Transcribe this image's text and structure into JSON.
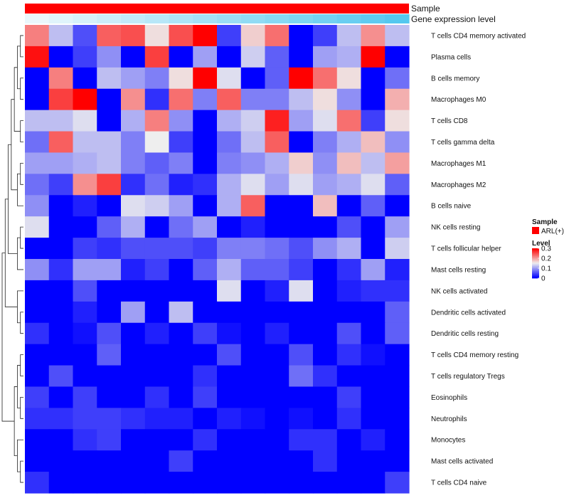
{
  "chart_data": {
    "type": "heatmap",
    "rows": [
      "T cells CD4 memory activated",
      "Plasma cells",
      "B cells memory",
      "Macrophages M0",
      "T cells CD8",
      "T cells gamma delta",
      "Macrophages M1",
      "Macrophages M2",
      "B cells naive",
      "NK cells resting",
      "T cells follicular helper",
      "Mast cells resting",
      "NK cells activated",
      "Dendritic cells activated",
      "Dendritic cells resting",
      "T cells CD4 memory resting",
      "T cells regulatory  Tregs",
      "Eosinophils",
      "Neutrophils",
      "Monocytes",
      "Mast cells activated",
      "T cells CD4 naive"
    ],
    "n_columns": 16,
    "values": [
      [
        0.22,
        0.12,
        0.05,
        0.24,
        0.25,
        0.16,
        0.25,
        0.3,
        0.04,
        0.17,
        0.23,
        0.0,
        0.04,
        0.12,
        0.21,
        0.12
      ],
      [
        0.29,
        0.0,
        0.04,
        0.09,
        0.0,
        0.26,
        0.0,
        0.1,
        0.0,
        0.13,
        0.06,
        0.0,
        0.1,
        0.11,
        0.3,
        0.0
      ],
      [
        0.0,
        0.22,
        0.0,
        0.12,
        0.1,
        0.08,
        0.16,
        0.3,
        0.14,
        0.0,
        0.06,
        0.3,
        0.23,
        0.16,
        0.0,
        0.07
      ],
      [
        0.0,
        0.26,
        0.3,
        0.0,
        0.21,
        0.03,
        0.23,
        0.08,
        0.24,
        0.08,
        0.08,
        0.12,
        0.16,
        0.09,
        0.0,
        0.19
      ],
      [
        0.12,
        0.12,
        0.14,
        0.0,
        0.11,
        0.22,
        0.09,
        0.0,
        0.11,
        0.13,
        0.28,
        0.1,
        0.14,
        0.23,
        0.04,
        0.16
      ],
      [
        0.07,
        0.24,
        0.12,
        0.12,
        0.08,
        0.15,
        0.04,
        0.0,
        0.07,
        0.12,
        0.24,
        0.0,
        0.08,
        0.11,
        0.18,
        0.09
      ],
      [
        0.1,
        0.1,
        0.11,
        0.12,
        0.08,
        0.06,
        0.08,
        0.0,
        0.08,
        0.09,
        0.11,
        0.17,
        0.09,
        0.18,
        0.12,
        0.2
      ],
      [
        0.07,
        0.04,
        0.21,
        0.26,
        0.03,
        0.07,
        0.02,
        0.03,
        0.11,
        0.14,
        0.1,
        0.14,
        0.1,
        0.11,
        0.14,
        0.06
      ],
      [
        0.09,
        0.0,
        0.02,
        0.0,
        0.14,
        0.13,
        0.1,
        0.0,
        0.11,
        0.24,
        0.0,
        0.0,
        0.18,
        0.0,
        0.06,
        0.0
      ],
      [
        0.14,
        0.0,
        0.0,
        0.06,
        0.11,
        0.0,
        0.07,
        0.1,
        0.0,
        0.02,
        0.0,
        0.0,
        0.0,
        0.05,
        0.0,
        0.1
      ],
      [
        0.0,
        0.0,
        0.04,
        0.03,
        0.05,
        0.05,
        0.05,
        0.04,
        0.08,
        0.08,
        0.07,
        0.05,
        0.09,
        0.11,
        0.0,
        0.13
      ],
      [
        0.09,
        0.03,
        0.1,
        0.1,
        0.02,
        0.04,
        0.0,
        0.06,
        0.11,
        0.06,
        0.06,
        0.04,
        0.0,
        0.03,
        0.1,
        0.02
      ],
      [
        0.0,
        0.0,
        0.05,
        0.0,
        0.0,
        0.0,
        0.0,
        0.0,
        0.14,
        0.0,
        0.02,
        0.14,
        0.0,
        0.02,
        0.03,
        0.03
      ],
      [
        0.0,
        0.0,
        0.02,
        0.0,
        0.1,
        0.0,
        0.12,
        0.0,
        0.0,
        0.0,
        0.0,
        0.0,
        0.0,
        0.0,
        0.0,
        0.06
      ],
      [
        0.03,
        0.0,
        0.01,
        0.05,
        0.0,
        0.02,
        0.0,
        0.04,
        0.01,
        0.0,
        0.02,
        0.0,
        0.0,
        0.05,
        0.0,
        0.06
      ],
      [
        0.0,
        0.0,
        0.0,
        0.06,
        0.0,
        0.0,
        0.0,
        0.0,
        0.05,
        0.0,
        0.0,
        0.05,
        0.0,
        0.03,
        0.01,
        0.0
      ],
      [
        0.0,
        0.05,
        0.0,
        0.0,
        0.0,
        0.0,
        0.0,
        0.03,
        0.0,
        0.0,
        0.0,
        0.07,
        0.03,
        0.0,
        0.0,
        0.0
      ],
      [
        0.04,
        0.0,
        0.04,
        0.0,
        0.0,
        0.03,
        0.0,
        0.04,
        0.0,
        0.0,
        0.0,
        0.0,
        0.0,
        0.04,
        0.0,
        0.0
      ],
      [
        0.03,
        0.03,
        0.04,
        0.04,
        0.03,
        0.02,
        0.02,
        0.0,
        0.02,
        0.01,
        0.0,
        0.01,
        0.0,
        0.03,
        0.0,
        0.0
      ],
      [
        0.0,
        0.0,
        0.03,
        0.04,
        0.0,
        0.0,
        0.0,
        0.03,
        0.0,
        0.0,
        0.0,
        0.03,
        0.03,
        0.0,
        0.02,
        0.0
      ],
      [
        0.0,
        0.0,
        0.0,
        0.0,
        0.0,
        0.0,
        0.04,
        0.0,
        0.0,
        0.0,
        0.0,
        0.0,
        0.03,
        0.0,
        0.0,
        0.0
      ],
      [
        0.03,
        0.0,
        0.0,
        0.0,
        0.0,
        0.0,
        0.0,
        0.0,
        0.0,
        0.0,
        0.0,
        0.0,
        0.0,
        0.0,
        0.0,
        0.04
      ]
    ],
    "annotation_rows": [
      "Sample",
      "Gene expression level"
    ],
    "gene_expression_level": [
      0.05,
      0.1,
      0.15,
      0.2,
      0.25,
      0.3,
      0.35,
      0.4,
      0.45,
      0.5,
      0.55,
      0.6,
      0.65,
      0.7,
      0.75,
      0.8
    ],
    "legend": {
      "sample_title": "Sample",
      "sample_entry": "ARL(+)",
      "level_title": "Level",
      "level_ticks": [
        "0.3",
        "0.2",
        "0.1",
        "0"
      ],
      "level_tick_values": [
        0.3,
        0.2,
        0.1,
        0
      ]
    },
    "color_range": [
      0,
      0.3
    ],
    "colors": {
      "low": "#0000ff",
      "mid": "#eeeeee",
      "high": "#ff0000",
      "sample_red": "#ff0000",
      "annotation_light": "#eaf7fc",
      "annotation_dark": "#55c8ef",
      "tree": "#222222"
    }
  }
}
